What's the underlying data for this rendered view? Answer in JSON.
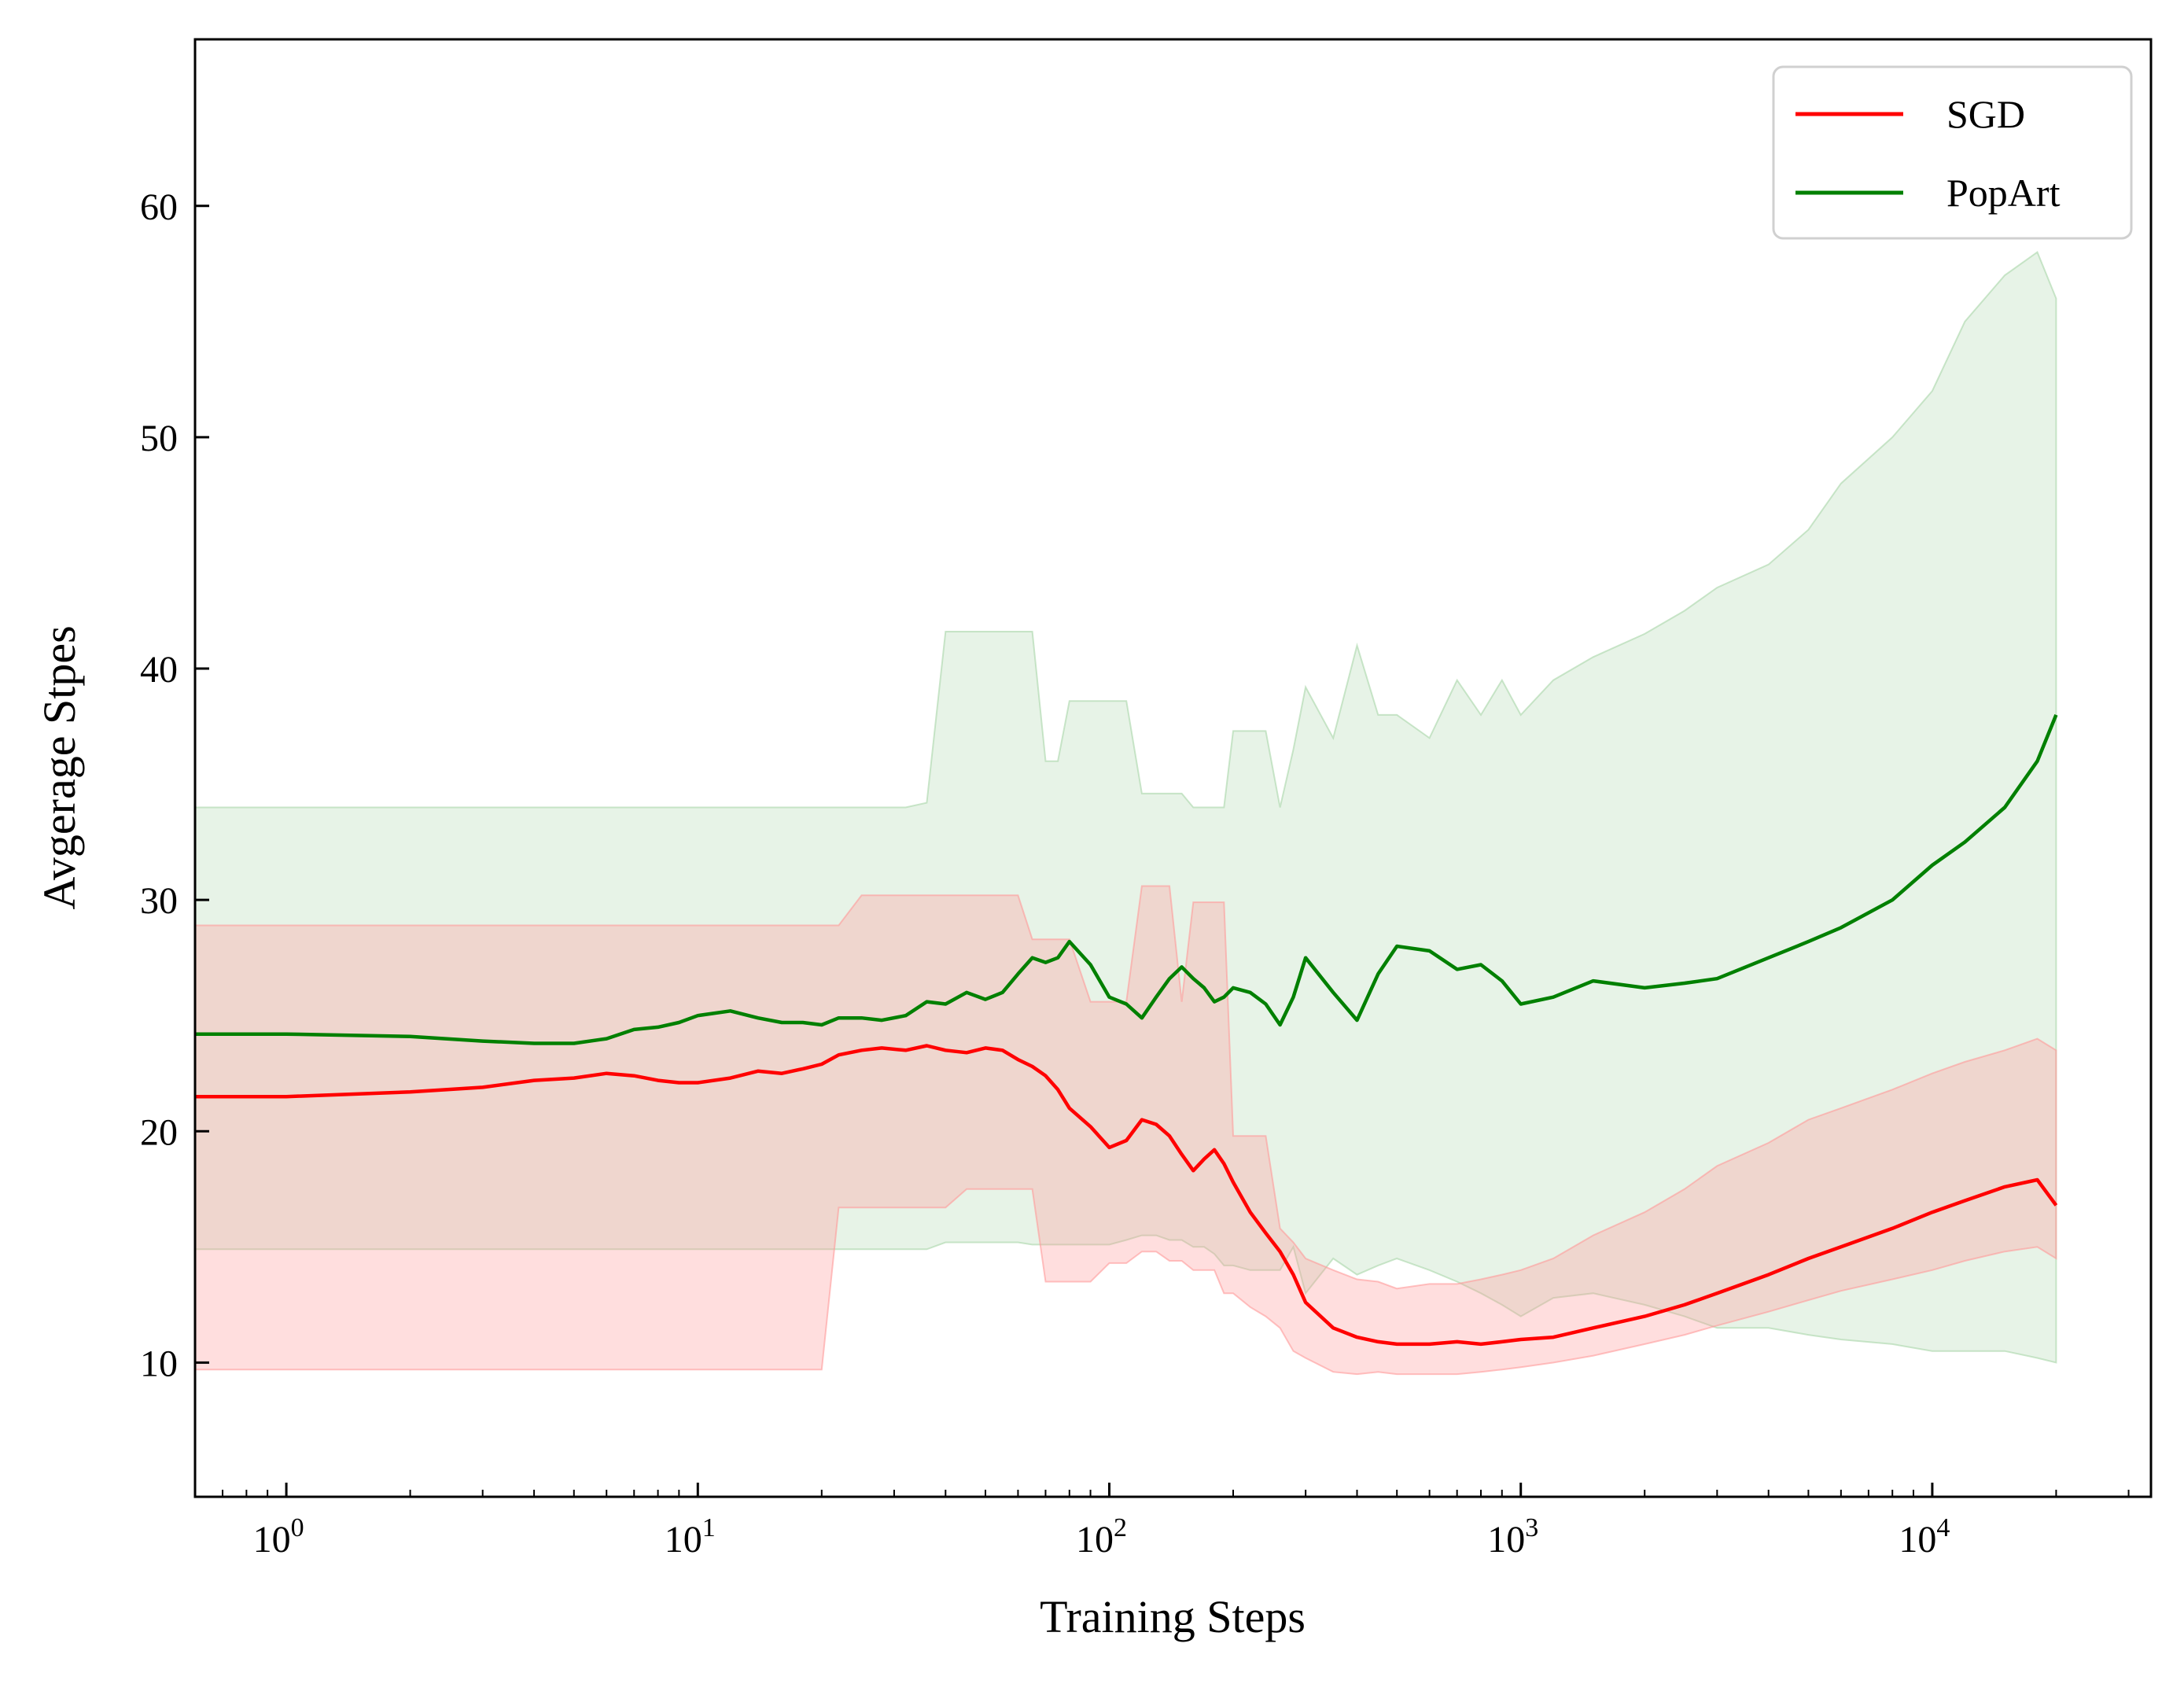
{
  "chart_data": {
    "type": "line",
    "title": "",
    "xlabel": "Training Steps",
    "ylabel": "Avgerage Stpes",
    "xscale": "log",
    "xlim": [
      0.6,
      34000
    ],
    "ylim": [
      4.2,
      67.2
    ],
    "x_ticks": [
      {
        "value": 1,
        "base": "10",
        "exp": "0"
      },
      {
        "value": 10,
        "base": "10",
        "exp": "1"
      },
      {
        "value": 100,
        "base": "10",
        "exp": "2"
      },
      {
        "value": 1000,
        "base": "10",
        "exp": "3"
      },
      {
        "value": 10000,
        "base": "10",
        "exp": "4"
      }
    ],
    "y_ticks": [
      {
        "value": 10,
        "label": "10"
      },
      {
        "value": 20,
        "label": "20"
      },
      {
        "value": 30,
        "label": "30"
      },
      {
        "value": 40,
        "label": "40"
      },
      {
        "value": 50,
        "label": "50"
      },
      {
        "value": 60,
        "label": "60"
      }
    ],
    "grid": false,
    "legend": {
      "placement": "top-right"
    },
    "series": [
      {
        "name": "SGD",
        "color": "#ff0000",
        "band_color": "#ff9999",
        "x": [
          0.6,
          1,
          2,
          3,
          4,
          5,
          6,
          7,
          8,
          9,
          10,
          12,
          14,
          16,
          18,
          20,
          22,
          25,
          28,
          32,
          36,
          40,
          45,
          50,
          55,
          60,
          65,
          70,
          75,
          80,
          90,
          100,
          110,
          120,
          130,
          140,
          150,
          160,
          170,
          180,
          190,
          200,
          220,
          240,
          260,
          280,
          300,
          350,
          400,
          450,
          500,
          600,
          700,
          800,
          900,
          1000,
          1200,
          1500,
          2000,
          2500,
          3000,
          4000,
          5000,
          6000,
          8000,
          10000,
          12000,
          15000,
          18000,
          20000
        ],
        "mean": [
          21.5,
          21.5,
          21.7,
          21.9,
          22.2,
          22.3,
          22.5,
          22.4,
          22.2,
          22.1,
          22.1,
          22.3,
          22.6,
          22.5,
          22.7,
          22.9,
          23.3,
          23.5,
          23.6,
          23.5,
          23.7,
          23.5,
          23.4,
          23.6,
          23.5,
          23.1,
          22.8,
          22.4,
          21.8,
          21.0,
          20.2,
          19.3,
          19.6,
          20.5,
          20.3,
          19.8,
          19.0,
          18.3,
          18.8,
          19.2,
          18.6,
          17.8,
          16.5,
          15.6,
          14.8,
          13.8,
          12.6,
          11.5,
          11.1,
          10.9,
          10.8,
          10.8,
          10.9,
          10.8,
          10.9,
          11.0,
          11.1,
          11.5,
          12.0,
          12.5,
          13.0,
          13.8,
          14.5,
          15.0,
          15.8,
          16.5,
          17.0,
          17.6,
          17.9,
          16.8
        ],
        "upper": [
          28.9,
          28.9,
          28.9,
          28.9,
          28.9,
          28.9,
          28.9,
          28.9,
          28.9,
          28.9,
          28.9,
          28.9,
          28.9,
          28.9,
          28.9,
          28.9,
          28.9,
          30.2,
          30.2,
          30.2,
          30.2,
          30.2,
          30.2,
          30.2,
          30.2,
          30.2,
          28.3,
          28.3,
          28.3,
          28.3,
          25.6,
          25.6,
          25.6,
          30.6,
          30.6,
          30.6,
          25.6,
          29.9,
          29.9,
          29.9,
          29.9,
          19.8,
          19.8,
          19.8,
          15.8,
          15.2,
          14.5,
          14.0,
          13.6,
          13.5,
          13.2,
          13.4,
          13.4,
          13.6,
          13.8,
          14.0,
          14.5,
          15.5,
          16.5,
          17.5,
          18.5,
          19.5,
          20.5,
          21.0,
          21.8,
          22.5,
          23.0,
          23.5,
          24.0,
          23.5
        ],
        "lower": [
          9.7,
          9.7,
          9.7,
          9.7,
          9.7,
          9.7,
          9.7,
          9.7,
          9.7,
          9.7,
          9.7,
          9.7,
          9.7,
          9.7,
          9.7,
          9.7,
          16.7,
          16.7,
          16.7,
          16.7,
          16.7,
          16.7,
          17.5,
          17.5,
          17.5,
          17.5,
          17.5,
          13.5,
          13.5,
          13.5,
          13.5,
          14.3,
          14.3,
          14.8,
          14.8,
          14.4,
          14.4,
          14.0,
          14.0,
          14.0,
          13.0,
          13.0,
          12.4,
          12.0,
          11.5,
          10.5,
          10.2,
          9.6,
          9.5,
          9.6,
          9.5,
          9.5,
          9.5,
          9.6,
          9.7,
          9.8,
          10.0,
          10.3,
          10.8,
          11.2,
          11.6,
          12.2,
          12.7,
          13.1,
          13.6,
          14.0,
          14.4,
          14.8,
          15.0,
          14.5
        ]
      },
      {
        "name": "PopArt",
        "color": "#008000",
        "band_color": "#a8d5a8",
        "x": [
          0.6,
          1,
          2,
          3,
          4,
          5,
          6,
          7,
          8,
          9,
          10,
          12,
          14,
          16,
          18,
          20,
          22,
          25,
          28,
          32,
          36,
          40,
          45,
          50,
          55,
          60,
          65,
          70,
          75,
          80,
          90,
          100,
          110,
          120,
          130,
          140,
          150,
          160,
          170,
          180,
          190,
          200,
          220,
          240,
          260,
          280,
          300,
          350,
          400,
          450,
          500,
          600,
          700,
          800,
          900,
          1000,
          1200,
          1500,
          2000,
          2500,
          3000,
          4000,
          5000,
          6000,
          8000,
          10000,
          12000,
          15000,
          18000,
          20000
        ],
        "mean": [
          24.2,
          24.2,
          24.1,
          23.9,
          23.8,
          23.8,
          24.0,
          24.4,
          24.5,
          24.7,
          25.0,
          25.2,
          24.9,
          24.7,
          24.7,
          24.6,
          24.9,
          24.9,
          24.8,
          25.0,
          25.6,
          25.5,
          26.0,
          25.7,
          26.0,
          26.8,
          27.5,
          27.3,
          27.5,
          28.2,
          27.2,
          25.8,
          25.5,
          24.9,
          25.8,
          26.6,
          27.1,
          26.6,
          26.2,
          25.6,
          25.8,
          26.2,
          26.0,
          25.5,
          24.6,
          25.8,
          27.5,
          26.0,
          24.8,
          26.8,
          28.0,
          27.8,
          27.0,
          27.2,
          26.5,
          25.5,
          25.8,
          26.5,
          26.2,
          26.4,
          26.6,
          27.5,
          28.2,
          28.8,
          30.0,
          31.5,
          32.5,
          34.0,
          36.0,
          38.0
        ],
        "upper": [
          34.0,
          34.0,
          34.0,
          34.0,
          34.0,
          34.0,
          34.0,
          34.0,
          34.0,
          34.0,
          34.0,
          34.0,
          34.0,
          34.0,
          34.0,
          34.0,
          34.0,
          34.0,
          34.0,
          34.0,
          34.2,
          41.6,
          41.6,
          41.6,
          41.6,
          41.6,
          41.6,
          36.0,
          36.0,
          38.6,
          38.6,
          38.6,
          38.6,
          34.6,
          34.6,
          34.6,
          34.6,
          34.0,
          34.0,
          34.0,
          34.0,
          37.3,
          37.3,
          37.3,
          34.0,
          36.5,
          39.2,
          37.0,
          41.0,
          38.0,
          38.0,
          37.0,
          39.5,
          38.0,
          39.5,
          38.0,
          39.5,
          40.5,
          41.5,
          42.5,
          43.5,
          44.5,
          46.0,
          48.0,
          50.0,
          52.0,
          55.0,
          57.0,
          58.0,
          56.0
        ],
        "lower": [
          14.9,
          14.9,
          14.9,
          14.9,
          14.9,
          14.9,
          14.9,
          14.9,
          14.9,
          14.9,
          14.9,
          14.9,
          14.9,
          14.9,
          14.9,
          14.9,
          14.9,
          14.9,
          14.9,
          14.9,
          14.9,
          15.2,
          15.2,
          15.2,
          15.2,
          15.2,
          15.1,
          15.1,
          15.1,
          15.1,
          15.1,
          15.1,
          15.3,
          15.5,
          15.5,
          15.3,
          15.3,
          15.0,
          15.0,
          14.7,
          14.2,
          14.2,
          14.0,
          14.0,
          14.0,
          15.0,
          13.0,
          14.5,
          13.8,
          14.2,
          14.5,
          14.0,
          13.5,
          13.0,
          12.5,
          12.0,
          12.8,
          13.0,
          12.5,
          12.0,
          11.5,
          11.5,
          11.2,
          11.0,
          10.8,
          10.5,
          10.5,
          10.5,
          10.2,
          10.0
        ]
      }
    ]
  }
}
